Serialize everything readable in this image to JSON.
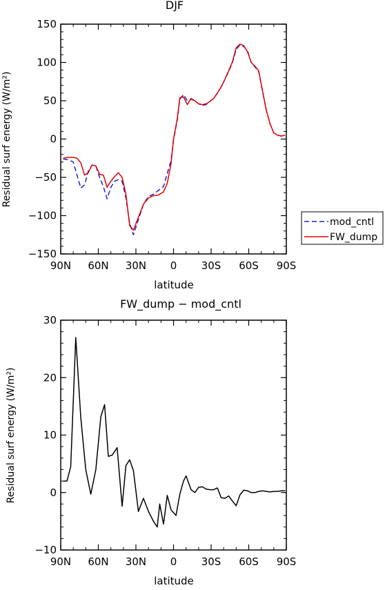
{
  "chart_data": [
    {
      "type": "line",
      "title": "DJF",
      "xlabel": "latitude",
      "ylabel": "Residual surf energy (W/m²)",
      "xlim": [
        90,
        -90
      ],
      "ylim": [
        -150,
        150
      ],
      "x_ticks": [
        "90N",
        "60N",
        "30N",
        "0",
        "30S",
        "60S",
        "90S"
      ],
      "y_ticks": [
        "150",
        "100",
        "50",
        "0",
        "−50",
        "−100",
        "−150"
      ],
      "legend_position": "right",
      "series": [
        {
          "name": "mod_cntl",
          "color": "#1f1fd0",
          "dash": "dashed",
          "x": [
            88,
            84,
            80,
            77,
            74,
            71,
            68,
            65,
            62,
            59,
            56,
            53,
            50,
            47,
            44,
            41,
            38,
            35,
            32,
            28,
            24,
            20,
            16,
            12,
            8,
            5,
            2,
            0,
            -3,
            -5,
            -8,
            -11,
            -14,
            -17,
            -20,
            -23,
            -26,
            -29,
            -32,
            -35,
            -38,
            -41,
            -44,
            -47,
            -50,
            -53,
            -56,
            -59,
            -62,
            -65,
            -68,
            -71,
            -74,
            -77,
            -80,
            -83,
            -86,
            -89
          ],
          "y": [
            -26,
            -27,
            -30,
            -47,
            -64,
            -60,
            -42,
            -34,
            -35,
            -50,
            -62,
            -78,
            -63,
            -55,
            -53,
            -55,
            -77,
            -110,
            -125,
            -105,
            -85,
            -75,
            -72,
            -67,
            -62,
            -45,
            -28,
            -1,
            25,
            52,
            58,
            50,
            52,
            50,
            46,
            44,
            45,
            49,
            53,
            60,
            68,
            78,
            88,
            100,
            117,
            123,
            121,
            115,
            100,
            94,
            88,
            62,
            38,
            20,
            8,
            5,
            4,
            5
          ],
          "legend_label": "mod_cntl"
        },
        {
          "name": "FW_dump",
          "color": "#e00000",
          "dash": "solid",
          "x": [
            88,
            84,
            80,
            77,
            74,
            71,
            68,
            65,
            62,
            59,
            56,
            53,
            50,
            47,
            44,
            41,
            38,
            35,
            32,
            28,
            24,
            20,
            16,
            12,
            8,
            5,
            2,
            0,
            -3,
            -5,
            -8,
            -11,
            -14,
            -17,
            -20,
            -23,
            -26,
            -29,
            -32,
            -35,
            -38,
            -41,
            -44,
            -47,
            -50,
            -53,
            -56,
            -59,
            -62,
            -65,
            -68,
            -71,
            -74,
            -77,
            -80,
            -83,
            -86,
            -89
          ],
          "y": [
            -25,
            -24,
            -24,
            -25,
            -31,
            -47,
            -44,
            -34,
            -35,
            -46,
            -47,
            -63,
            -55,
            -49,
            -44,
            -50,
            -72,
            -113,
            -119,
            -102,
            -85,
            -77,
            -74,
            -73,
            -69,
            -58,
            -32,
            0,
            27,
            54,
            55,
            45,
            53,
            50,
            46,
            45,
            46,
            49,
            53,
            60,
            68,
            78,
            89,
            101,
            119,
            124,
            122,
            114,
            100,
            95,
            89,
            63,
            38,
            20,
            8,
            5,
            4,
            5
          ],
          "legend_label": "FW_dump"
        }
      ]
    },
    {
      "type": "line",
      "title": "FW_dump − mod_cntl",
      "xlabel": "latitude",
      "ylabel": "Residual surf energy (W/m²)",
      "xlim": [
        90,
        -90
      ],
      "ylim": [
        -10,
        30
      ],
      "x_ticks": [
        "90N",
        "60N",
        "30N",
        "0",
        "30S",
        "60S",
        "90S"
      ],
      "y_ticks": [
        "30",
        "20",
        "10",
        "0",
        "−10"
      ],
      "series": [
        {
          "color": "#000000",
          "x": [
            88,
            85,
            82,
            78,
            74,
            70,
            66,
            62,
            58,
            55,
            52,
            49,
            45,
            41,
            38,
            35,
            32,
            28,
            24,
            20,
            16,
            13,
            11,
            8,
            5,
            2,
            -2,
            -5,
            -8,
            -10,
            -14,
            -17,
            -20,
            -23,
            -26,
            -29,
            -32,
            -35,
            -38,
            -41,
            -44,
            -47,
            -50,
            -53,
            -56,
            -59,
            -62,
            -65,
            -68,
            -71,
            -74,
            -77,
            -80,
            -83,
            -86,
            -89
          ],
          "y": [
            2,
            2,
            4.5,
            27,
            13,
            4,
            -0.3,
            4,
            13.2,
            15.3,
            6.3,
            6.5,
            7.8,
            -2.4,
            4.7,
            5.7,
            3.8,
            -3.3,
            -1,
            -3.3,
            -5,
            -6,
            -2,
            -5.5,
            -0.5,
            -3,
            -4,
            -0.3,
            2,
            2.9,
            0.5,
            0,
            0.9,
            1,
            0.6,
            0.5,
            0.5,
            0.8,
            -0.9,
            -1,
            -0.6,
            -1.5,
            -2.3,
            -0.4,
            0.4,
            0.3,
            0,
            0,
            0.2,
            0.3,
            0.2,
            0.1,
            0.2,
            0.2,
            0.3,
            0.3
          ]
        }
      ]
    }
  ]
}
